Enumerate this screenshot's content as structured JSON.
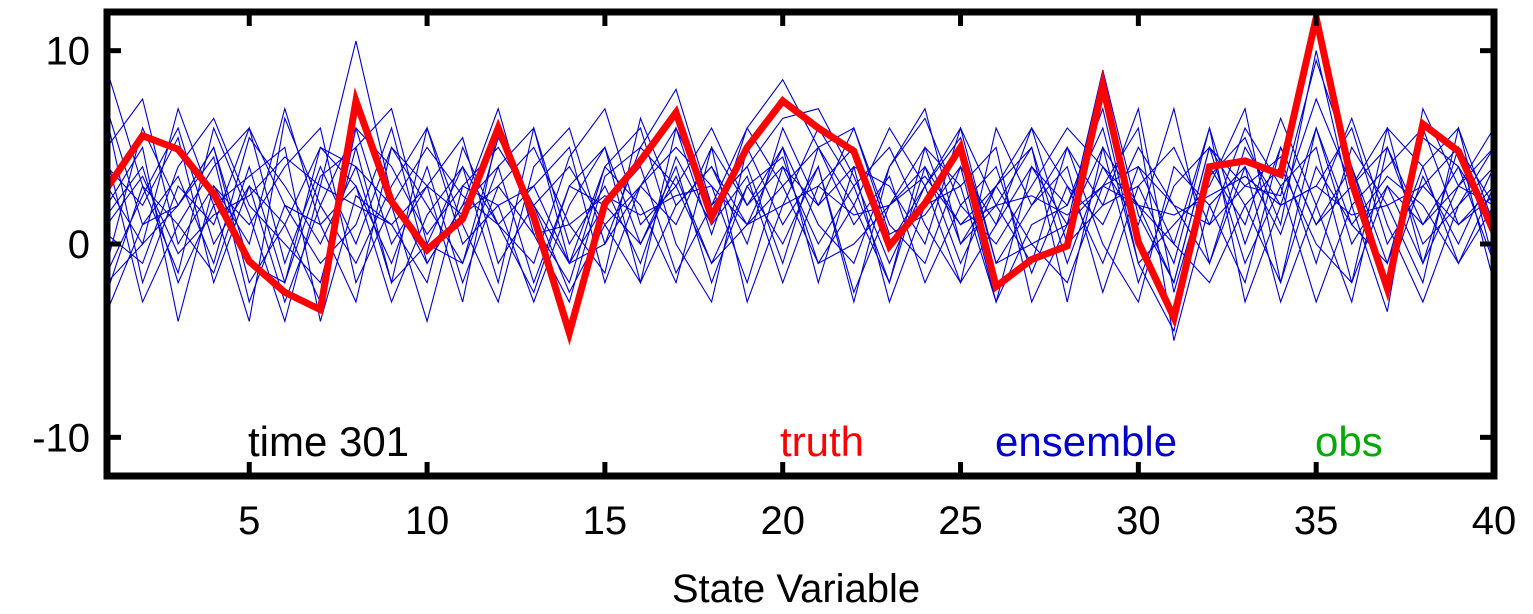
{
  "chart_data": {
    "type": "line",
    "xlabel": "State Variable",
    "ylabel": "",
    "xlim": [
      1,
      40
    ],
    "ylim": [
      -12,
      12
    ],
    "xticks": [
      5,
      10,
      15,
      20,
      25,
      30,
      35,
      40
    ],
    "yticks": [
      -10,
      0,
      10
    ],
    "xtick_labels": [
      "5",
      "10",
      "15",
      "20",
      "25",
      "30",
      "35",
      "40"
    ],
    "ytick_labels": [
      "-10",
      "0",
      "10"
    ],
    "grid": false,
    "annotations": {
      "time_label": "time 301",
      "truth_label": "truth",
      "ensemble_label": "ensemble",
      "obs_label": "obs"
    },
    "colors": {
      "truth": "#ff0000",
      "ensemble": "#0000cc",
      "obs": "#00aa00",
      "axes": "#000000"
    },
    "x": [
      1,
      2,
      3,
      4,
      5,
      6,
      7,
      8,
      9,
      10,
      11,
      12,
      13,
      14,
      15,
      16,
      17,
      18,
      19,
      20,
      21,
      22,
      23,
      24,
      25,
      26,
      27,
      28,
      29,
      30,
      31,
      32,
      33,
      34,
      35,
      36,
      37,
      38,
      39,
      40
    ],
    "truth": [
      2.9,
      5.6,
      4.9,
      2.6,
      -0.9,
      -2.5,
      -3.4,
      7.4,
      2.2,
      -0.3,
      1.3,
      6.0,
      1.4,
      -4.6,
      2.1,
      4.3,
      6.8,
      1.4,
      5.0,
      7.4,
      6.0,
      4.8,
      -0.1,
      2.1,
      5.0,
      -2.2,
      -0.8,
      -0.1,
      8.2,
      0.1,
      -3.8,
      4.0,
      4.3,
      3.6,
      11.7,
      3.2,
      -2.3,
      6.2,
      4.8,
      0.6
    ],
    "ensemble": [
      {
        "values": [
          9.0,
          3.0,
          -1.5,
          6.0,
          1.5,
          -4.0,
          3.0,
          10.5,
          2.5,
          -1.0,
          2.0,
          7.0,
          0.5,
          -3.0,
          3.5,
          5.0,
          8.0,
          2.0,
          4.0,
          6.5,
          7.0,
          3.5,
          -1.0,
          3.0,
          6.0,
          -1.0,
          0.0,
          1.0,
          9.0,
          1.5,
          -2.0,
          5.0,
          3.0,
          2.5,
          9.5,
          4.0,
          -1.0,
          5.5,
          4.0,
          1.0
        ]
      },
      {
        "values": [
          4.0,
          2.0,
          5.5,
          -2.0,
          3.0,
          1.0,
          -3.0,
          6.0,
          4.0,
          0.5,
          3.0,
          5.0,
          2.0,
          -2.5,
          1.0,
          3.0,
          6.0,
          0.5,
          6.0,
          8.5,
          5.0,
          6.0,
          0.5,
          1.5,
          4.0,
          -3.0,
          1.0,
          2.0,
          7.0,
          -1.0,
          -4.5,
          3.5,
          5.5,
          1.0,
          10.0,
          2.0,
          -3.5,
          7.0,
          3.0,
          2.0
        ]
      },
      {
        "values": [
          -1.0,
          6.0,
          2.0,
          4.5,
          -3.0,
          2.0,
          1.0,
          3.0,
          -1.0,
          4.0,
          -2.0,
          3.0,
          5.0,
          1.0,
          -1.5,
          6.5,
          2.0,
          4.0,
          1.0,
          3.0,
          5.0,
          1.0,
          3.5,
          -2.0,
          2.0,
          4.0,
          -1.5,
          3.0,
          1.0,
          5.0,
          2.0,
          -1.0,
          4.0,
          0.5,
          6.0,
          1.0,
          3.5,
          2.0,
          -1.0,
          3.0
        ]
      },
      {
        "values": [
          6.5,
          -2.0,
          3.0,
          1.0,
          6.0,
          -1.0,
          4.0,
          0.0,
          5.0,
          2.0,
          -1.0,
          4.0,
          -2.0,
          3.0,
          5.0,
          0.0,
          3.5,
          -1.0,
          3.0,
          0.0,
          4.0,
          -2.5,
          2.0,
          5.0,
          0.0,
          3.0,
          5.0,
          -1.0,
          4.0,
          2.0,
          0.0,
          6.0,
          -3.0,
          2.0,
          3.0,
          6.0,
          0.0,
          3.0,
          5.0,
          -2.0
        ]
      },
      {
        "values": [
          1.5,
          4.0,
          -2.0,
          2.0,
          3.5,
          5.0,
          -4.0,
          2.5,
          1.0,
          -2.0,
          5.0,
          1.0,
          3.0,
          -1.0,
          4.0,
          2.0,
          -2.0,
          5.0,
          2.0,
          4.0,
          0.0,
          3.0,
          5.0,
          1.0,
          -2.0,
          6.0,
          2.0,
          4.0,
          -2.5,
          3.0,
          5.0,
          1.0,
          3.0,
          4.5,
          -1.0,
          5.0,
          2.0,
          -2.0,
          6.0,
          1.0
        ]
      },
      {
        "values": [
          3.0,
          0.0,
          7.0,
          2.0,
          -4.0,
          6.5,
          2.0,
          -1.0,
          3.0,
          6.0,
          1.0,
          -3.0,
          4.0,
          6.0,
          0.0,
          3.0,
          1.0,
          5.0,
          -3.0,
          2.0,
          6.0,
          3.0,
          -2.0,
          4.0,
          1.0,
          3.0,
          6.0,
          0.0,
          2.0,
          7.0,
          -2.5,
          4.0,
          1.0,
          6.5,
          2.0,
          -3.0,
          5.0,
          1.0,
          3.0,
          6.0
        ]
      },
      {
        "values": [
          -2.5,
          3.0,
          1.0,
          -1.5,
          4.0,
          -2.0,
          5.0,
          3.0,
          -3.0,
          1.5,
          4.0,
          -2.0,
          6.0,
          0.0,
          3.0,
          -1.0,
          4.5,
          1.0,
          3.5,
          -2.0,
          3.0,
          5.0,
          0.0,
          3.0,
          5.5,
          -1.0,
          2.0,
          5.0,
          0.0,
          -3.0,
          4.0,
          2.0,
          -2.0,
          5.0,
          1.0,
          4.0,
          -2.0,
          3.5,
          0.0,
          4.0
        ]
      },
      {
        "values": [
          5.0,
          7.5,
          0.0,
          3.0,
          1.0,
          4.0,
          6.0,
          -2.0,
          2.0,
          5.0,
          2.5,
          1.0,
          -1.0,
          4.5,
          7.0,
          1.0,
          3.0,
          6.0,
          2.0,
          5.0,
          1.0,
          -1.0,
          4.0,
          6.5,
          2.0,
          0.0,
          3.0,
          6.0,
          4.0,
          1.0,
          7.0,
          -1.0,
          5.0,
          2.0,
          7.5,
          3.0,
          5.0,
          0.0,
          2.0,
          5.0
        ]
      },
      {
        "values": [
          0.5,
          -1.0,
          4.0,
          6.5,
          2.0,
          0.0,
          -2.0,
          5.0,
          7.0,
          0.0,
          -1.0,
          5.5,
          2.0,
          -1.0,
          2.0,
          4.0,
          -1.5,
          2.0,
          6.0,
          3.0,
          -1.0,
          2.0,
          6.0,
          3.0,
          -2.0,
          1.0,
          4.0,
          2.0,
          6.0,
          -1.0,
          1.0,
          3.0,
          7.0,
          -2.0,
          4.0,
          1.0,
          -1.0,
          4.0,
          6.0,
          -1.0
        ]
      },
      {
        "values": [
          -3.5,
          1.0,
          3.5,
          -1.0,
          5.5,
          3.0,
          0.0,
          4.0,
          2.0,
          -4.0,
          3.0,
          2.0,
          -3.0,
          2.0,
          5.0,
          -2.0,
          2.0,
          4.0,
          0.0,
          6.0,
          2.0,
          4.0,
          -3.0,
          2.0,
          3.0,
          5.0,
          -3.0,
          1.0,
          3.0,
          6.0,
          -5.0,
          2.0,
          4.0,
          -3.0,
          2.0,
          6.5,
          1.0,
          -3.0,
          2.0,
          4.0
        ]
      },
      {
        "values": [
          2.0,
          5.0,
          -4.0,
          3.0,
          0.0,
          7.0,
          1.0,
          -3.0,
          5.0,
          3.0,
          -3.0,
          6.0,
          1.0,
          -2.0,
          4.0,
          6.0,
          0.0,
          -3.0,
          5.0,
          1.0,
          4.0,
          -3.0,
          4.0,
          7.0,
          0.0,
          2.0,
          5.0,
          -3.0,
          5.0,
          2.0,
          -2.0,
          5.0,
          -1.0,
          3.0,
          5.0,
          -2.0,
          6.0,
          4.0,
          -1.0,
          2.0
        ]
      },
      {
        "values": [
          7.0,
          1.0,
          2.0,
          5.0,
          -2.0,
          1.0,
          5.0,
          4.0,
          -2.0,
          6.0,
          0.0,
          2.0,
          3.0,
          5.0,
          -2.0,
          3.0,
          5.0,
          3.0,
          -2.0,
          4.0,
          2.0,
          6.0,
          1.0,
          -1.0,
          4.0,
          1.0,
          6.0,
          3.0,
          -1.0,
          4.0,
          2.0,
          1.0,
          6.0,
          3.0,
          -3.0,
          2.0,
          4.0,
          6.0,
          1.0,
          3.0
        ]
      },
      {
        "values": [
          -1.5,
          2.5,
          6.0,
          0.0,
          3.0,
          -3.0,
          2.0,
          6.0,
          0.0,
          3.0,
          5.5,
          -1.0,
          2.0,
          4.0,
          1.0,
          -2.0,
          6.0,
          2.0,
          4.0,
          -1.0,
          5.0,
          2.0,
          -2.0,
          5.0,
          3.0,
          -3.0,
          4.0,
          1.0,
          5.0,
          -2.0,
          3.0,
          5.0,
          2.0,
          -2.0,
          6.0,
          0.0,
          3.0,
          -1.0,
          5.0,
          2.0
        ]
      },
      {
        "values": [
          4.5,
          -3.0,
          1.0,
          4.0,
          6.0,
          2.0,
          -1.0,
          1.0,
          6.0,
          -1.0,
          2.0,
          4.0,
          6.0,
          -1.0,
          0.0,
          5.0,
          3.0,
          -1.0,
          1.0,
          5.0,
          -2.0,
          4.0,
          3.0,
          0.0,
          6.0,
          2.0,
          -1.0,
          5.0,
          2.0,
          3.0,
          -1.0,
          6.0,
          0.0,
          5.0,
          1.0,
          3.0,
          6.0,
          -1.0,
          3.0,
          5.0
        ]
      },
      {
        "values": [
          1.0,
          3.5,
          -0.5,
          1.5,
          2.5,
          4.5,
          3.0,
          2.0,
          1.0,
          3.0,
          1.5,
          3.0,
          0.5,
          1.0,
          2.5,
          1.5,
          2.5,
          3.0,
          1.0,
          2.0,
          3.0,
          1.5,
          2.0,
          3.5,
          1.0,
          2.0,
          2.5,
          1.5,
          3.0,
          2.0,
          1.5,
          2.5,
          3.5,
          2.0,
          3.0,
          1.5,
          2.0,
          3.0,
          1.0,
          2.5
        ]
      },
      {
        "values": [
          -2.0,
          0.0,
          2.0,
          5.0,
          -1.0,
          -2.0,
          3.5,
          5.0,
          -2.0,
          0.0,
          4.0,
          1.0,
          -2.5,
          3.0,
          2.0,
          0.0,
          4.0,
          -2.0,
          3.0,
          4.5,
          -1.0,
          0.0,
          2.0,
          4.0,
          -1.0,
          3.0,
          0.0,
          -2.0,
          3.0,
          4.0,
          0.0,
          -2.0,
          2.0,
          4.0,
          0.0,
          -2.0,
          3.0,
          1.0,
          4.0,
          -1.0
        ]
      }
    ]
  }
}
